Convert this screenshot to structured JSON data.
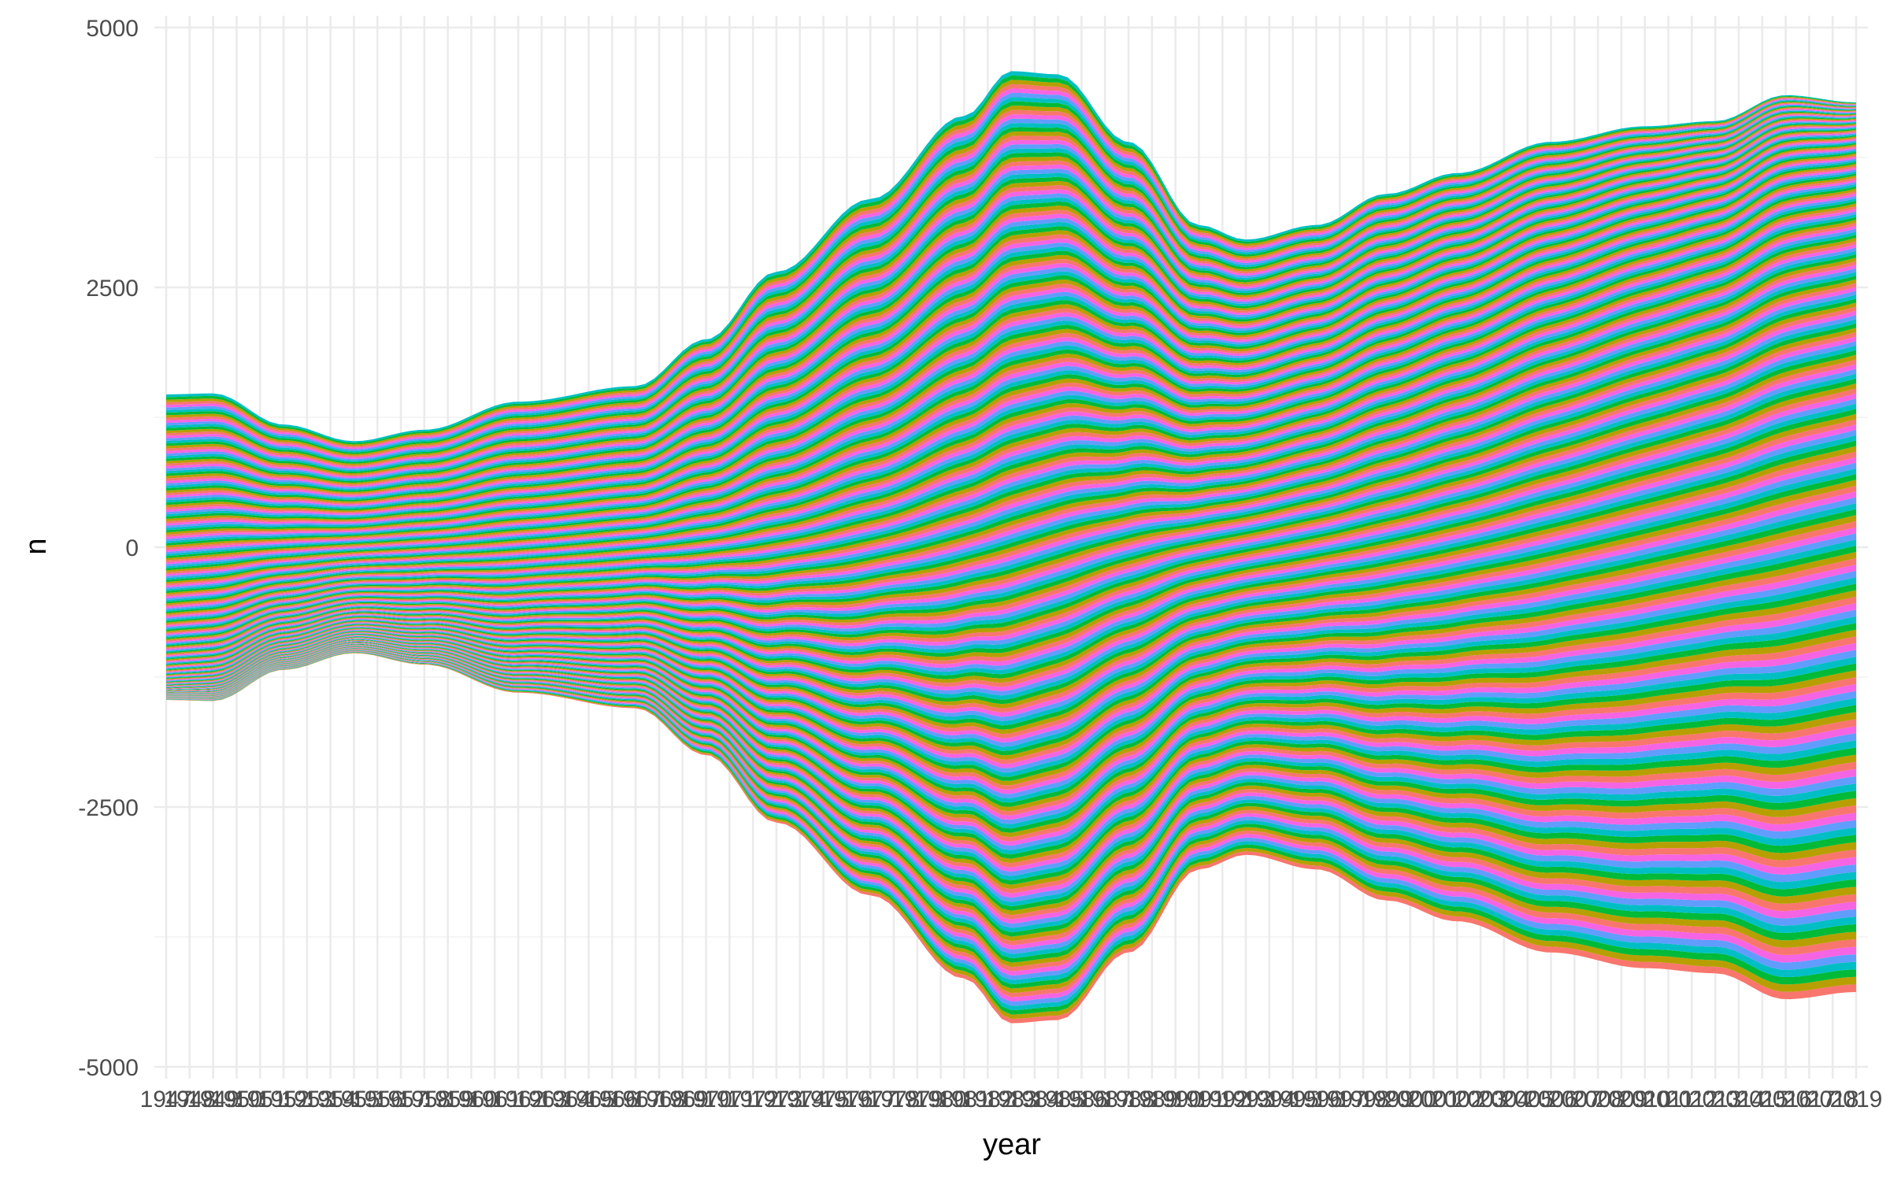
{
  "chart_data": {
    "type": "area",
    "subtype": "streamgraph",
    "xlabel": "year",
    "ylabel": "n",
    "ylim": [
      -5000,
      5000
    ],
    "y_ticks": [
      5000,
      2500,
      0,
      -2500,
      -5000
    ],
    "y_tick_labels": [
      "5000",
      "2500",
      "0",
      "-2500",
      "-5000"
    ],
    "x_range": [
      1947,
      2019
    ],
    "x_tick_labels": [
      "1947",
      "1948",
      "1949",
      "1950",
      "1951",
      "1952",
      "1953",
      "1954",
      "1955",
      "1956",
      "1957",
      "1958",
      "1959",
      "1960",
      "1961",
      "1962",
      "1963",
      "1964",
      "1965",
      "1966",
      "1967",
      "1968",
      "1969",
      "1970",
      "1971",
      "1972",
      "1973",
      "1974",
      "1975",
      "1976",
      "1977",
      "1978",
      "1979",
      "1980",
      "1981",
      "1982",
      "1983",
      "1984",
      "1985",
      "1986",
      "1987",
      "1988",
      "1989",
      "1990",
      "1991",
      "1992",
      "1993",
      "1994",
      "1995",
      "1996",
      "1997",
      "1998",
      "1999",
      "2000",
      "2001",
      "2002",
      "2003",
      "2004",
      "2005",
      "2006",
      "2007",
      "2008",
      "2009",
      "2010",
      "2011",
      "2012",
      "2013",
      "2014",
      "2015",
      "2016",
      "2017",
      "2018",
      "2019"
    ],
    "grid": true,
    "legend": "none",
    "palette": [
      "#F8766D",
      "#B79F00",
      "#00BA38",
      "#00BFC4",
      "#619CFF",
      "#F564E3"
    ],
    "total_upper": {
      "years": [
        1947,
        1949,
        1952,
        1955,
        1958,
        1962,
        1967,
        1970,
        1973,
        1977,
        1981,
        1983,
        1985,
        1988,
        1991,
        1993,
        1996,
        1999,
        2002,
        2006,
        2010,
        2013,
        2016,
        2019
      ],
      "values": [
        1470,
        1480,
        1180,
        1020,
        1130,
        1400,
        1550,
        2000,
        2650,
        3350,
        4150,
        4580,
        4550,
        3900,
        3100,
        2960,
        3100,
        3400,
        3600,
        3900,
        4050,
        4100,
        4350,
        4280
      ]
    },
    "total_lower": {
      "years": [
        1947,
        1949,
        1952,
        1955,
        1958,
        1962,
        1967,
        1970,
        1973,
        1977,
        1981,
        1983,
        1985,
        1988,
        1991,
        1993,
        1996,
        1999,
        2002,
        2006,
        2010,
        2013,
        2016,
        2019
      ],
      "values": [
        -1470,
        -1480,
        -1180,
        -1020,
        -1130,
        -1400,
        -1550,
        -2000,
        -2650,
        -3350,
        -4150,
        -4580,
        -4550,
        -3900,
        -3100,
        -2960,
        -3100,
        -3400,
        -3600,
        -3900,
        -4050,
        -4100,
        -4350,
        -4280
      ]
    }
  }
}
